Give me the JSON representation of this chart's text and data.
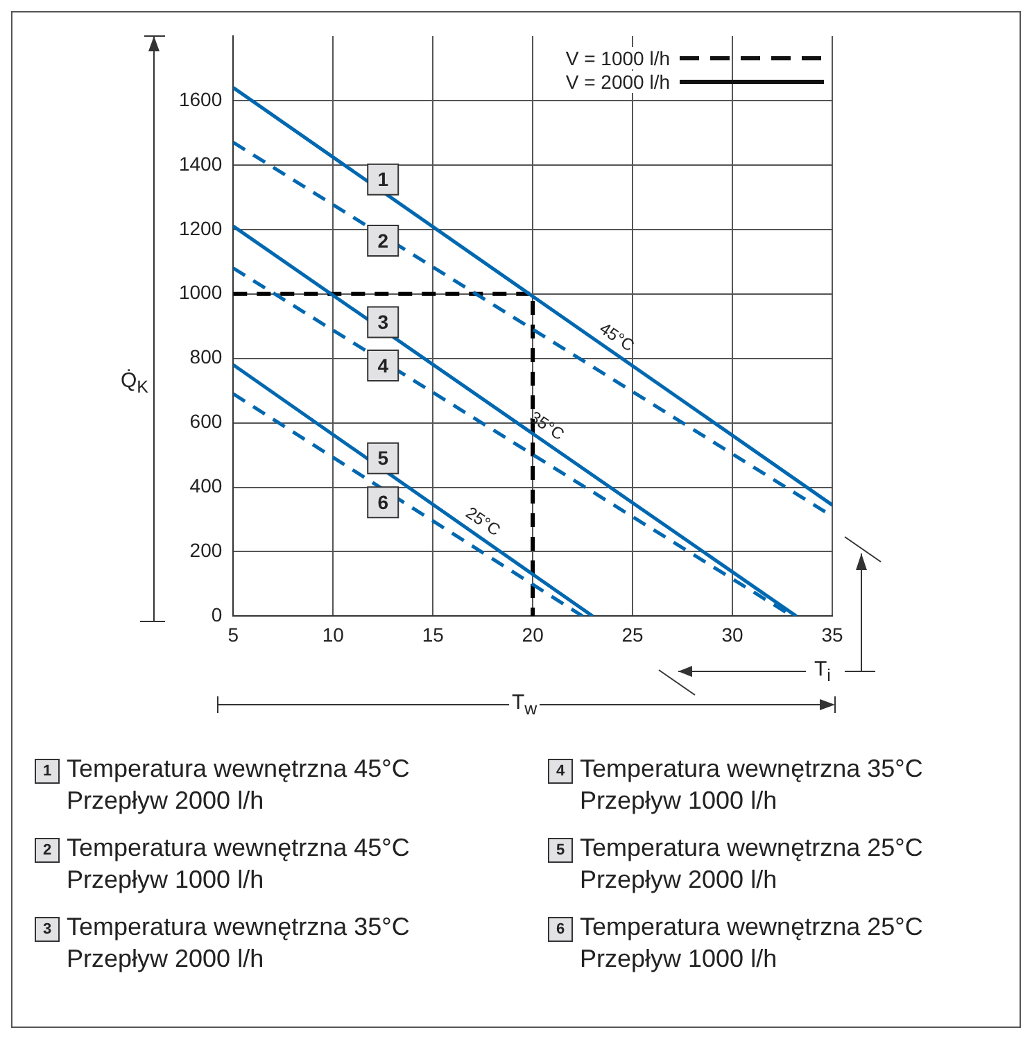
{
  "chart_data": {
    "type": "line",
    "xlabel": "T$_{w}$",
    "ylabel": "Q̇$_{K}$",
    "xlim": [
      5,
      35
    ],
    "xticks": [
      5,
      10,
      15,
      20,
      25,
      30,
      35
    ],
    "ylim": [
      0,
      1800
    ],
    "yticks": [
      0,
      200,
      400,
      600,
      800,
      1000,
      1200,
      1400,
      1600
    ],
    "grid": true,
    "marker": "none",
    "series": [
      {
        "color": "#0068b0",
        "line_style": "solid",
        "x": [
          5,
          35
        ],
        "values": [
          1640,
          345
        ]
      },
      {
        "color": "#0068b0",
        "line_style": "dashed",
        "x": [
          5,
          35
        ],
        "values": [
          1470,
          310
        ]
      },
      {
        "color": "#0068b0",
        "line_style": "solid",
        "x": [
          5,
          33.2
        ],
        "values": [
          1210,
          0
        ]
      },
      {
        "color": "#0068b0",
        "line_style": "dashed",
        "x": [
          5,
          33
        ],
        "values": [
          1080,
          0
        ]
      },
      {
        "color": "#0068b0",
        "line_style": "solid",
        "x": [
          5,
          23
        ],
        "values": [
          780,
          0
        ]
      },
      {
        "color": "#0068b0",
        "line_style": "dashed",
        "x": [
          5,
          22.5
        ],
        "values": [
          690,
          0
        ]
      },
      {
        "color": "#000000",
        "line_style": "dashed",
        "x": [
          5,
          20,
          20
        ],
        "values": [
          1000,
          1000,
          0
        ]
      }
    ],
    "annotations": [
      {
        "text": "1",
        "x": 12.5,
        "y": 1355
      },
      {
        "text": "2",
        "x": 12.5,
        "y": 1165
      },
      {
        "text": "3",
        "x": 12.5,
        "y": 912
      },
      {
        "text": "4",
        "x": 12.5,
        "y": 778
      },
      {
        "text": "5",
        "x": 12.5,
        "y": 490
      },
      {
        "text": "6",
        "x": 12.5,
        "y": 353
      },
      {
        "text": "45°C",
        "x": 23.8,
        "y": 828
      },
      {
        "text": "35°C",
        "x": 20.3,
        "y": 553
      },
      {
        "text": "25°C",
        "x": 17.1,
        "y": 256
      },
      "V = 1000 l/h",
      "V = 2000 l/h",
      "T$_{i}$",
      "1",
      "Temperatura wewnętrzna 45°C",
      "Przepływ 2000 l/h",
      "2",
      "Temperatura wewnętrzna 45°C",
      "Przepływ 1000 l/h",
      "3",
      "Temperatura wewnętrzna 35°C",
      "Przepływ 2000 l/h",
      "4",
      "Temperatura wewnętrzna 35°C",
      "Przepływ 1000 l/h",
      "5",
      "Temperatura wewnętrzna 25°C",
      "Przepływ 2000 l/h",
      "6",
      "Temperatura wewnętrzna 25°C",
      "Przepływ 1000 l/h"
    ]
  }
}
